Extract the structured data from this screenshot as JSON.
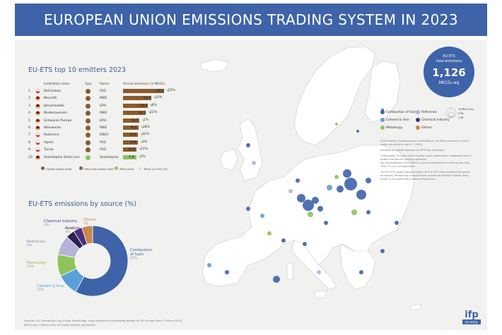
{
  "title": "EUROPEAN UNION EMISSIONS TRADING SYSTEM IN 2023",
  "colors": {
    "header": "#3e63a8",
    "combustion": "#3e63a8",
    "cement": "#5aa0d8",
    "metallurgy": "#8ec45a",
    "refineries": "#b7b3d9",
    "chemical": "#4a2f80",
    "aviation": "#2a2350",
    "others": "#c8884a",
    "lignite": "#8b5a2b",
    "trend_down": "#5fa83f"
  },
  "top10": {
    "title": "EU-ETS top 10 emitters 2023",
    "headers": {
      "installation": "Installation name",
      "type": "Type",
      "owner": "Owner",
      "emissions": "Annual emissions (in MtCO₂)"
    },
    "rows": [
      {
        "rank": "1",
        "country": "PL",
        "name": "Belchatow",
        "owner": "PGE",
        "value": 24.2,
        "value_label": "24.2",
        "trend": "-25%"
      },
      {
        "rank": "2",
        "country": "DE",
        "name": "Neurath",
        "owner": "RWE",
        "value": 16.5,
        "value_label": "16.5",
        "trend": "-32%"
      },
      {
        "rank": "3",
        "country": "DE",
        "name": "Jänschwalde",
        "owner": "EPH",
        "value": 14.5,
        "value_label": "14.5",
        "trend": "-9%"
      },
      {
        "rank": "4",
        "country": "DE",
        "name": "Niederaussem",
        "owner": "RWE",
        "value": 13.5,
        "value_label": "13.5",
        "trend": "-22%"
      },
      {
        "rank": "5",
        "country": "DE",
        "name": "Schwarze Pumpe",
        "owner": "EPH",
        "value": 9.7,
        "value_label": "9.7",
        "trend": "-1%"
      },
      {
        "rank": "6",
        "country": "DE",
        "name": "Weisweiler",
        "owner": "RWE",
        "value": 9.2,
        "value_label": "9.2",
        "trend": "-38%"
      },
      {
        "rank": "7",
        "country": "PL",
        "name": "Kozienice",
        "owner": "ENEA",
        "value": 8.9,
        "value_label": "8.9",
        "trend": "-32%"
      },
      {
        "rank": "8",
        "country": "PL",
        "name": "Opole",
        "owner": "PGE",
        "value": 8.9,
        "value_label": "8.9",
        "trend": "-3%"
      },
      {
        "rank": "9",
        "country": "PL",
        "name": "Turow",
        "owner": "PGE",
        "value": 8.0,
        "value_label": "8.0",
        "trend": "-21%"
      },
      {
        "rank": "10",
        "country": "DE",
        "name": "Voestalpine Stahl Linz",
        "owner": "Voestalpine",
        "value": 7.8,
        "value_label": "7.8",
        "trend": "-2%",
        "steel": true
      }
    ],
    "legend": {
      "lignite": "Lignite power plant",
      "hardcoal": "Hard coal power plant",
      "steel": "Steel plant",
      "trend": "Trend vs 2022 (%)"
    }
  },
  "total": {
    "line1": "EU-ETS",
    "line2": "total emissions",
    "value": "1,126",
    "unit": "MtCO₂-eq"
  },
  "map_legend": {
    "items": [
      {
        "label": "Combustion of fuels",
        "color": "#3e63a8"
      },
      {
        "label": "Refineries",
        "color": "#b7b3d9"
      },
      {
        "label": "Cement & lime",
        "color": "#5aa0d8"
      },
      {
        "label": "Chemical industry",
        "color": "#4a2f80"
      },
      {
        "label": "Metallurgy",
        "color": "#8ec45a"
      },
      {
        "label": "Others",
        "color": "#c8884a"
      }
    ],
    "sizes": [
      "10 MtCO₂-eq",
      "5 Mt",
      "1 Mt"
    ]
  },
  "notes": [
    "EU Emissions Trading System installations' verified emissions in 2023",
    "(data extracted on April 1, 2024).",
    "Sandbox to visible segment by ETS key. Ordinates.",
    "Combustion of fuels covers mostly power generation, combined heat &",
    "power and district heating networks.",
    "Air transportation (59.6 MtCO₂-eq) and installations emitting less than",
    "75kt CO₂ are not displayed.",
    "The EU-ETS covers approximately 40% of EU's total greenhouse gases",
    "emissions. Remaining emissions are covered at Member States' level,",
    "under a so-called Effort Sharing Regulation."
  ],
  "sources": {
    "title": "EU-ETS emissions by source (%)",
    "slices": [
      {
        "label": "Combustion\nof fuels",
        "pct": 58,
        "pct_label": "58%",
        "color": "#3e63a8"
      },
      {
        "label": "Cement & lime",
        "pct": 10,
        "pct_label": "10%",
        "color": "#5aa0d8"
      },
      {
        "label": "Metallurgy",
        "pct": 10,
        "pct_label": "10%",
        "color": "#8ec45a"
      },
      {
        "label": "Refineries",
        "pct": 9,
        "pct_label": "9%",
        "color": "#b7b3d9"
      },
      {
        "label": "Aviation",
        "pct": 4,
        "pct_label": "4%",
        "color": "#2a2350"
      },
      {
        "label": "Chemical industry",
        "pct": 4,
        "pct_label": "4%",
        "color": "#4a2f80"
      },
      {
        "label": "Others",
        "pct": 5,
        "pct_label": "5%",
        "color": "#c8884a"
      }
    ]
  },
  "footer": {
    "line1": "Sources: EU Transaction Log (Open Street Map, map adapted by Bundestag design for IFP School from C Prism (2024)",
    "line2": "MtCO₂-eq = Million tons of carbon dioxide equivalent"
  },
  "logo": {
    "text": "ifp",
    "sub": "SCHOOL"
  }
}
